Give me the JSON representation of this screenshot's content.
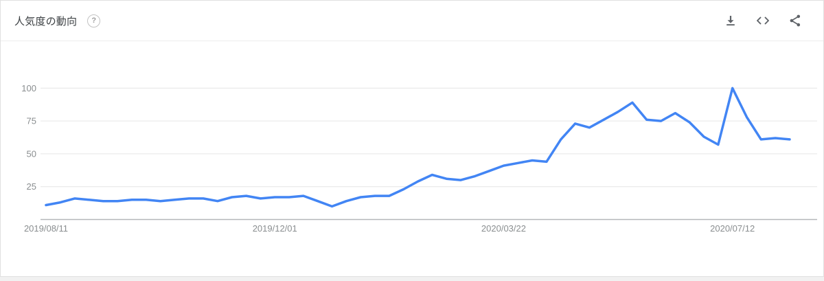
{
  "header": {
    "title": "人気度の動向",
    "help_glyph": "?",
    "actions": [
      {
        "name": "download",
        "icon": "download-icon"
      },
      {
        "name": "embed",
        "icon": "embed-code-icon"
      },
      {
        "name": "share",
        "icon": "share-icon"
      }
    ]
  },
  "colors": {
    "line": "#4285f4",
    "grid": "#ebebeb",
    "axis": "#b4b7b9",
    "tick_text": "#898d8f",
    "title_text": "#3c4043",
    "icon": "#5f6368",
    "card_border": "#e0e0e0",
    "card_bg": "#ffffff",
    "page_bg": "#f1f1f1"
  },
  "chart_data": {
    "type": "line",
    "title": "人気度の動向",
    "x": [
      "2019/08/11",
      "2019/08/18",
      "2019/08/25",
      "2019/09/01",
      "2019/09/08",
      "2019/09/15",
      "2019/09/22",
      "2019/09/29",
      "2019/10/06",
      "2019/10/13",
      "2019/10/20",
      "2019/10/27",
      "2019/11/03",
      "2019/11/10",
      "2019/11/17",
      "2019/11/24",
      "2019/12/01",
      "2019/12/08",
      "2019/12/15",
      "2019/12/22",
      "2019/12/29",
      "2020/01/05",
      "2020/01/12",
      "2020/01/19",
      "2020/01/26",
      "2020/02/02",
      "2020/02/09",
      "2020/02/16",
      "2020/02/23",
      "2020/03/01",
      "2020/03/08",
      "2020/03/15",
      "2020/03/22",
      "2020/03/29",
      "2020/04/05",
      "2020/04/12",
      "2020/04/19",
      "2020/04/26",
      "2020/05/03",
      "2020/05/10",
      "2020/05/17",
      "2020/05/24",
      "2020/05/31",
      "2020/06/07",
      "2020/06/14",
      "2020/06/21",
      "2020/06/28",
      "2020/07/05",
      "2020/07/12",
      "2020/07/19",
      "2020/07/26",
      "2020/08/02",
      "2020/08/09"
    ],
    "values": [
      11,
      13,
      16,
      15,
      14,
      14,
      15,
      15,
      14,
      15,
      16,
      16,
      14,
      17,
      18,
      16,
      17,
      17,
      18,
      14,
      10,
      14,
      17,
      18,
      18,
      23,
      29,
      34,
      31,
      30,
      33,
      37,
      41,
      43,
      45,
      44,
      61,
      73,
      70,
      76,
      82,
      89,
      76,
      75,
      81,
      74,
      63,
      57,
      100,
      78,
      61,
      62,
      61
    ],
    "x_tick_indices": [
      0,
      16,
      32,
      48
    ],
    "x_tick_labels": [
      "2019/08/11",
      "2019/12/01",
      "2020/03/22",
      "2020/07/12"
    ],
    "y_ticks": [
      25,
      50,
      75,
      100
    ],
    "y_tick_labels": [
      "25",
      "50",
      "75",
      "100"
    ],
    "ylim": [
      0,
      100
    ],
    "grid": "horizontal-only",
    "legend": "none"
  }
}
